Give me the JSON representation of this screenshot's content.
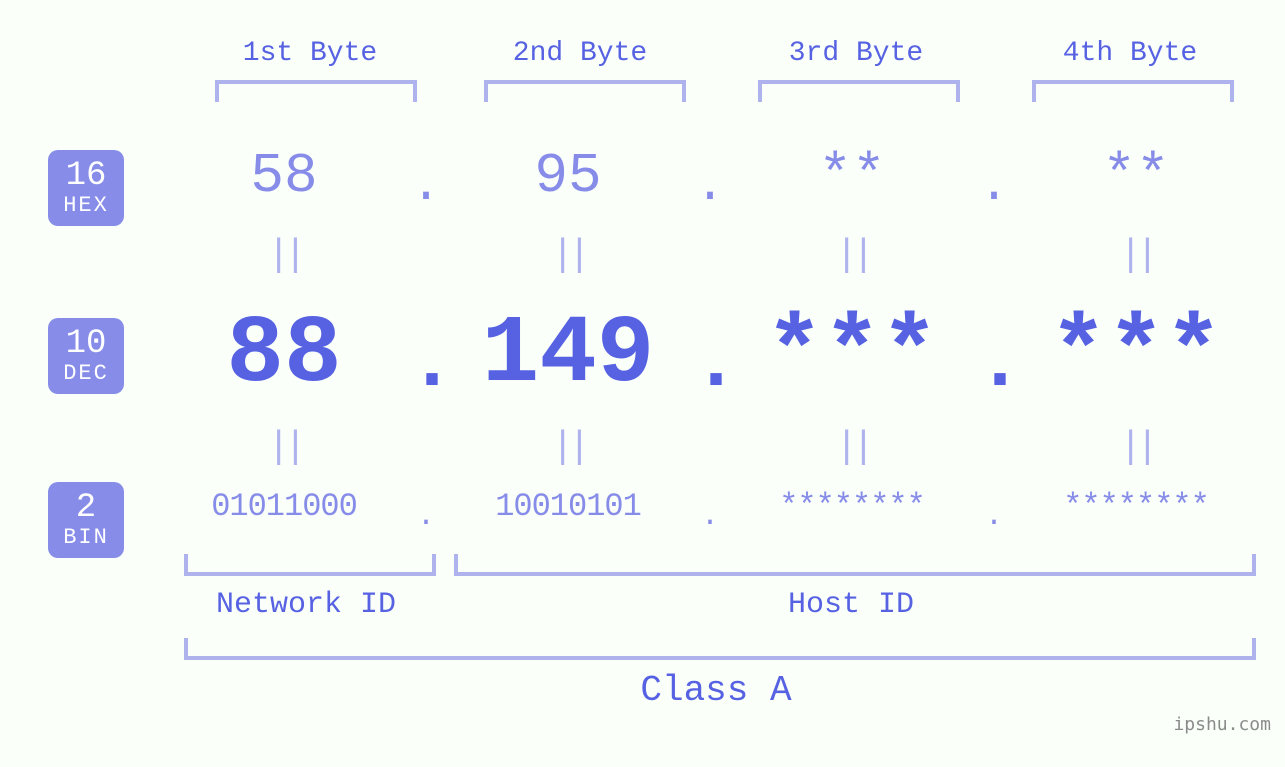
{
  "colors": {
    "page_bg": "#fafffa",
    "accent": "#5762e3",
    "accent_medium": "#868ce8",
    "accent_light": "#aeb3ee",
    "bracket": "#aeb3ee",
    "watermark": "#8b8b8b",
    "badge_text": "#ffffff"
  },
  "typography": {
    "font_family": "Lucida Console, Courier New, monospace",
    "byte_label_size": 28,
    "hex_value_size": 56,
    "dec_value_size": 96,
    "bin_value_size": 32,
    "equals_size": 38,
    "footer_label_size": 30,
    "class_label_size": 36,
    "badge_num_size": 34,
    "badge_label_size": 22,
    "watermark_size": 18
  },
  "ip": {
    "bytes_header": [
      "1st Byte",
      "2nd Byte",
      "3rd Byte",
      "4th Byte"
    ],
    "radix": [
      {
        "base": "16",
        "label": "HEX",
        "row_key": "hex"
      },
      {
        "base": "10",
        "label": "DEC",
        "row_key": "dec"
      },
      {
        "base": "2",
        "label": "BIN",
        "row_key": "bin"
      }
    ],
    "values": {
      "hex": [
        "58",
        "95",
        "**",
        "**"
      ],
      "dec": [
        "88",
        "149",
        "***",
        "***"
      ],
      "bin": [
        "01011000",
        "10010101",
        "********",
        "********"
      ]
    },
    "separator": ".",
    "equals_glyph": "||",
    "segments": {
      "network_label": "Network ID",
      "host_label": "Host ID",
      "class_label": "Class A",
      "network_bytes": [
        1
      ],
      "host_bytes": [
        2,
        3,
        4
      ]
    }
  },
  "watermark": "ipshu.com"
}
